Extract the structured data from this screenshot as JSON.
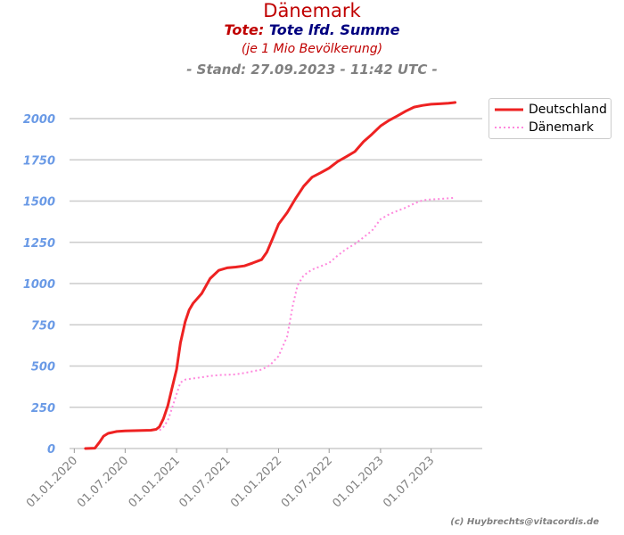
{
  "title": {
    "country": "Dänemark",
    "metric_prefix": "Tote:",
    "metric_name": "Tote lfd. Summe",
    "unit_note": "(je 1 Mio Bevölkerung)",
    "stand": "- Stand: 27.09.2023 - 11:42 UTC -"
  },
  "credit": "(c) Huybrechts@vitacordis.de",
  "colors": {
    "deutschland": "#ee2222",
    "daenemark": "#ff88dd",
    "ytick": "#6a9ae6",
    "xtick": "#808080",
    "grid": "#cccccc"
  },
  "chart_data": {
    "type": "line",
    "x_axis": {
      "type": "date",
      "range": [
        "2019-12-15",
        "2023-12-31"
      ],
      "ticks": [
        "2020-01-01",
        "2020-07-01",
        "2021-01-01",
        "2021-07-01",
        "2022-01-01",
        "2022-07-01",
        "2023-01-01",
        "2023-07-01"
      ],
      "tick_labels": [
        "01.01.2020",
        "01.07.2020",
        "01.01.2021",
        "01.07.2021",
        "01.01.2022",
        "01.07.2022",
        "01.01.2023",
        "01.07.2023"
      ]
    },
    "y_axis": {
      "range": [
        0,
        2200
      ],
      "ticks": [
        0,
        250,
        500,
        750,
        1000,
        1250,
        1500,
        1750,
        2000
      ],
      "tick_labels": [
        "0",
        "250",
        "500",
        "750",
        "1000",
        "1250",
        "1500",
        "1750",
        "2000"
      ]
    },
    "grid": "horizontal",
    "legend_position": "top-right outside",
    "series": [
      {
        "name": "Deutschland",
        "style": "solid",
        "points": [
          [
            "2020-02-10",
            0
          ],
          [
            "2020-03-15",
            2
          ],
          [
            "2020-04-01",
            40
          ],
          [
            "2020-04-15",
            75
          ],
          [
            "2020-05-01",
            92
          ],
          [
            "2020-06-01",
            103
          ],
          [
            "2020-07-01",
            107
          ],
          [
            "2020-08-01",
            108
          ],
          [
            "2020-09-01",
            109
          ],
          [
            "2020-10-01",
            111
          ],
          [
            "2020-10-20",
            116
          ],
          [
            "2020-11-01",
            132
          ],
          [
            "2020-11-15",
            180
          ],
          [
            "2020-12-01",
            260
          ],
          [
            "2020-12-15",
            360
          ],
          [
            "2021-01-01",
            480
          ],
          [
            "2021-01-15",
            640
          ],
          [
            "2021-02-01",
            770
          ],
          [
            "2021-02-15",
            840
          ],
          [
            "2021-03-01",
            880
          ],
          [
            "2021-04-01",
            940
          ],
          [
            "2021-05-01",
            1030
          ],
          [
            "2021-06-01",
            1080
          ],
          [
            "2021-07-01",
            1095
          ],
          [
            "2021-08-01",
            1100
          ],
          [
            "2021-09-01",
            1107
          ],
          [
            "2021-10-01",
            1125
          ],
          [
            "2021-11-01",
            1145
          ],
          [
            "2021-11-20",
            1190
          ],
          [
            "2021-12-10",
            1270
          ],
          [
            "2022-01-01",
            1360
          ],
          [
            "2022-02-01",
            1430
          ],
          [
            "2022-03-01",
            1510
          ],
          [
            "2022-04-01",
            1590
          ],
          [
            "2022-05-01",
            1645
          ],
          [
            "2022-06-01",
            1672
          ],
          [
            "2022-07-01",
            1700
          ],
          [
            "2022-08-01",
            1740
          ],
          [
            "2022-09-01",
            1770
          ],
          [
            "2022-10-01",
            1800
          ],
          [
            "2022-11-01",
            1860
          ],
          [
            "2022-12-01",
            1905
          ],
          [
            "2023-01-01",
            1955
          ],
          [
            "2023-02-01",
            1990
          ],
          [
            "2023-03-01",
            2015
          ],
          [
            "2023-04-01",
            2045
          ],
          [
            "2023-05-01",
            2070
          ],
          [
            "2023-06-01",
            2080
          ],
          [
            "2023-07-01",
            2087
          ],
          [
            "2023-08-01",
            2090
          ],
          [
            "2023-09-01",
            2093
          ],
          [
            "2023-09-25",
            2098
          ]
        ]
      },
      {
        "name": "Dänemark",
        "style": "dotted",
        "points": [
          [
            "2020-11-01",
            110
          ],
          [
            "2020-11-15",
            130
          ],
          [
            "2020-12-01",
            170
          ],
          [
            "2020-12-15",
            240
          ],
          [
            "2021-01-01",
            330
          ],
          [
            "2021-01-15",
            400
          ],
          [
            "2021-02-01",
            418
          ],
          [
            "2021-03-01",
            425
          ],
          [
            "2021-04-01",
            432
          ],
          [
            "2021-05-01",
            440
          ],
          [
            "2021-06-01",
            445
          ],
          [
            "2021-07-01",
            447
          ],
          [
            "2021-08-01",
            450
          ],
          [
            "2021-09-01",
            458
          ],
          [
            "2021-10-01",
            468
          ],
          [
            "2021-11-01",
            478
          ],
          [
            "2021-12-01",
            505
          ],
          [
            "2022-01-01",
            560
          ],
          [
            "2022-02-01",
            680
          ],
          [
            "2022-02-20",
            860
          ],
          [
            "2022-03-10",
            990
          ],
          [
            "2022-04-01",
            1050
          ],
          [
            "2022-05-01",
            1085
          ],
          [
            "2022-06-01",
            1105
          ],
          [
            "2022-07-01",
            1125
          ],
          [
            "2022-08-01",
            1170
          ],
          [
            "2022-09-01",
            1210
          ],
          [
            "2022-10-01",
            1240
          ],
          [
            "2022-11-01",
            1280
          ],
          [
            "2022-12-01",
            1320
          ],
          [
            "2023-01-01",
            1390
          ],
          [
            "2023-02-01",
            1420
          ],
          [
            "2023-03-01",
            1440
          ],
          [
            "2023-04-01",
            1460
          ],
          [
            "2023-05-01",
            1485
          ],
          [
            "2023-06-01",
            1505
          ],
          [
            "2023-07-01",
            1510
          ],
          [
            "2023-08-01",
            1513
          ],
          [
            "2023-09-01",
            1517
          ],
          [
            "2023-09-25",
            1520
          ]
        ]
      }
    ]
  }
}
